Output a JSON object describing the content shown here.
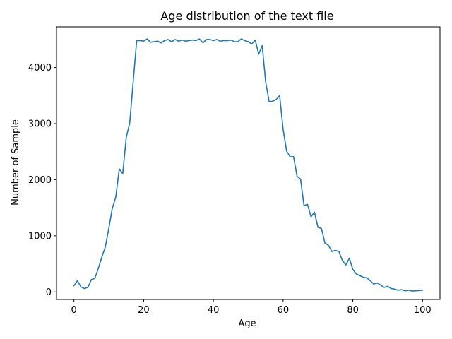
{
  "chart_data": {
    "type": "line",
    "title": "Age distribution of the text file",
    "xlabel": "Age",
    "ylabel": "Number of Sample",
    "xlim": [
      -5,
      105
    ],
    "ylim": [
      -135,
      4725
    ],
    "xticks": [
      0,
      20,
      40,
      60,
      80,
      100
    ],
    "yticks": [
      0,
      1000,
      2000,
      3000,
      4000
    ],
    "xtick_labels": [
      "0",
      "20",
      "40",
      "60",
      "80",
      "100"
    ],
    "ytick_labels": [
      "0",
      "1000",
      "2000",
      "3000",
      "4000"
    ],
    "grid": false,
    "color": "#1f77b4",
    "series": [
      {
        "x": [
          0,
          1,
          2,
          3,
          4,
          5,
          6,
          7,
          8,
          9,
          10,
          11,
          12,
          13,
          14,
          15,
          16,
          17,
          18,
          19,
          20,
          21,
          22,
          23,
          24,
          25,
          26,
          27,
          28,
          29,
          30,
          31,
          32,
          33,
          34,
          35,
          36,
          37,
          38,
          39,
          40,
          41,
          42,
          43,
          44,
          45,
          46,
          47,
          48,
          49,
          50,
          51,
          52,
          53,
          54,
          55,
          56,
          57,
          58,
          59,
          60,
          61,
          62,
          63,
          64,
          65,
          66,
          67,
          68,
          69,
          70,
          71,
          72,
          73,
          74,
          75,
          76,
          77,
          78,
          79,
          80,
          81,
          82,
          83,
          84,
          85,
          86,
          87,
          88,
          89,
          90,
          91,
          92,
          93,
          94,
          95,
          96,
          97,
          98,
          99,
          100
        ],
        "values": [
          110,
          200,
          90,
          60,
          80,
          220,
          240,
          420,
          620,
          800,
          1130,
          1490,
          1690,
          2190,
          2110,
          2750,
          3010,
          3750,
          4480,
          4480,
          4470,
          4510,
          4450,
          4460,
          4470,
          4440,
          4480,
          4500,
          4460,
          4500,
          4470,
          4490,
          4470,
          4480,
          4490,
          4480,
          4510,
          4440,
          4500,
          4500,
          4480,
          4500,
          4470,
          4480,
          4480,
          4490,
          4460,
          4460,
          4510,
          4480,
          4460,
          4420,
          4490,
          4240,
          4390,
          3740,
          3390,
          3400,
          3430,
          3500,
          2900,
          2510,
          2410,
          2410,
          2060,
          2010,
          1540,
          1560,
          1340,
          1420,
          1150,
          1130,
          870,
          830,
          720,
          740,
          720,
          560,
          480,
          600,
          400,
          320,
          290,
          260,
          250,
          200,
          140,
          160,
          120,
          80,
          100,
          60,
          50,
          30,
          40,
          20,
          30,
          15,
          20,
          25,
          30
        ]
      }
    ]
  }
}
